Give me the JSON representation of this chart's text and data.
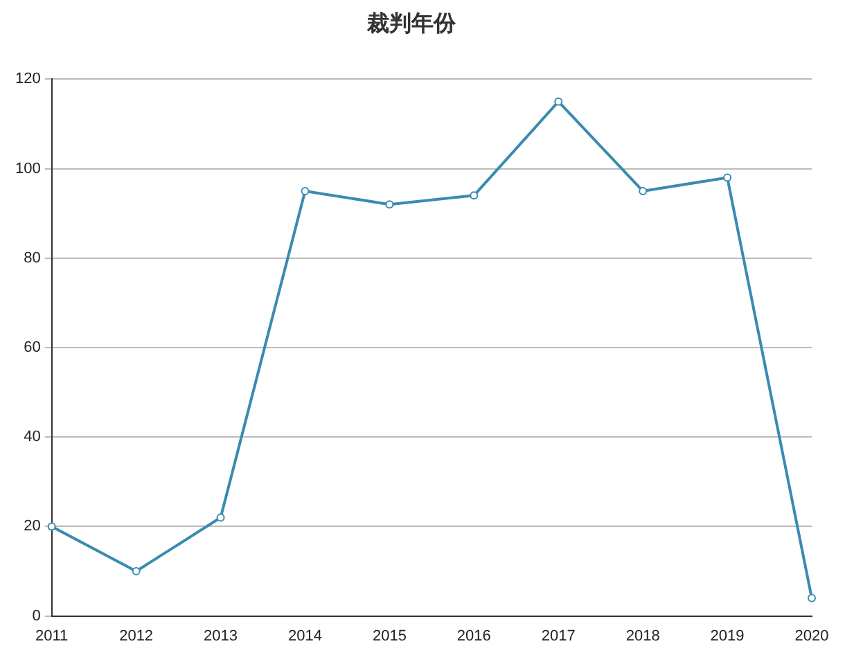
{
  "chart_data": {
    "type": "line",
    "title": "裁判年份",
    "categories": [
      "2011",
      "2012",
      "2013",
      "2014",
      "2015",
      "2016",
      "2017",
      "2018",
      "2019",
      "2020"
    ],
    "series": [
      {
        "color": "#3a8bb0",
        "values": [
          20,
          10,
          22,
          95,
          92,
          94,
          115,
          95,
          98,
          4
        ]
      }
    ],
    "ylim": [
      0,
      120
    ],
    "yticks": [
      0,
      20,
      40,
      60,
      80,
      100,
      120
    ],
    "grid": "y",
    "legend": false,
    "marker": "circle",
    "line_style": "solid"
  }
}
